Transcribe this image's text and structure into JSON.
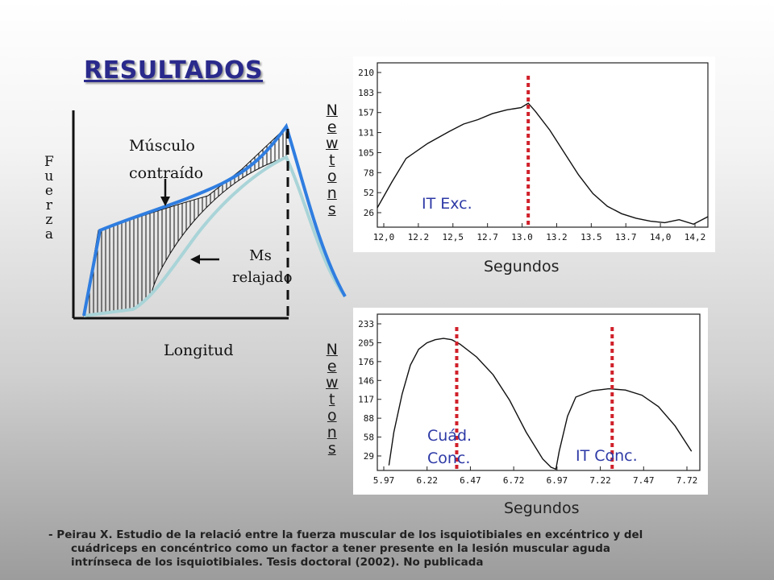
{
  "slide": {
    "title": "RESULTADOS",
    "reference_line1": "- Peirau X.  Estudio de la relació entre la fuerza muscular de los isquiotibiales en excéntrico y del",
    "reference_line2": "cuádriceps en concéntrico como un factor a tener presente en la lesión muscular aguda",
    "reference_line3": "intrínseca de los isquiotibiales. Tesis doctoral (2002). No publicada"
  },
  "chart_data": [
    {
      "type": "area",
      "title": "",
      "ylabel": "Fuerza",
      "xlabel": "Longitud",
      "annotations": [
        "Músculo contraído",
        "Ms relajado"
      ],
      "series": [
        {
          "name": "Músculo contraído",
          "color": "#2f7de0"
        },
        {
          "name": "Ms relajado",
          "color": "#a9d4d8"
        }
      ]
    },
    {
      "type": "line",
      "ylabel": "Newtons",
      "xlabel": "Segundos",
      "annotation": "IT  Exc.",
      "marker_x": 13.05,
      "y_ticks": [
        "210",
        "183",
        "157",
        "131",
        "105",
        "78",
        "52",
        "26"
      ],
      "x_ticks": [
        "12,0",
        "12.2",
        "12,5",
        "12.7",
        "13.0",
        "13.2",
        "13.5",
        "13.7",
        "14,0",
        "14,2"
      ],
      "x": [
        12.0,
        12.1,
        12.2,
        12.35,
        12.5,
        12.6,
        12.7,
        12.8,
        12.9,
        13.0,
        13.05,
        13.1,
        13.2,
        13.3,
        13.4,
        13.5,
        13.6,
        13.7,
        13.8,
        13.9,
        14.0,
        14.1,
        14.2,
        14.3
      ],
      "y": [
        26,
        60,
        92,
        112,
        128,
        138,
        144,
        152,
        157,
        160,
        166,
        155,
        130,
        100,
        70,
        45,
        28,
        18,
        12,
        8,
        6,
        10,
        4,
        14
      ]
    },
    {
      "type": "line",
      "ylabel": "Newtons",
      "xlabel": "Segundos",
      "annotations": [
        "Cuád.",
        "Conc.",
        "IT  Conc."
      ],
      "markers_x": [
        6.38,
        7.32
      ],
      "y_ticks": [
        "233",
        "205",
        "176",
        "146",
        "117",
        "88",
        "58",
        "29"
      ],
      "x_ticks": [
        "5.97",
        "6.22",
        "6.47",
        "6.72",
        "6.97",
        "7.22",
        "7.47",
        "7.72"
      ],
      "x": [
        5.97,
        6.0,
        6.05,
        6.1,
        6.15,
        6.2,
        6.25,
        6.3,
        6.35,
        6.4,
        6.5,
        6.6,
        6.7,
        6.8,
        6.9,
        6.95,
        6.98,
        7.0,
        7.05,
        7.1,
        7.2,
        7.3,
        7.4,
        7.5,
        7.6,
        7.7,
        7.8
      ],
      "y": [
        8,
        60,
        120,
        165,
        190,
        200,
        205,
        207,
        205,
        198,
        178,
        150,
        110,
        60,
        18,
        5,
        2,
        30,
        85,
        115,
        125,
        128,
        126,
        118,
        100,
        70,
        30
      ]
    }
  ]
}
